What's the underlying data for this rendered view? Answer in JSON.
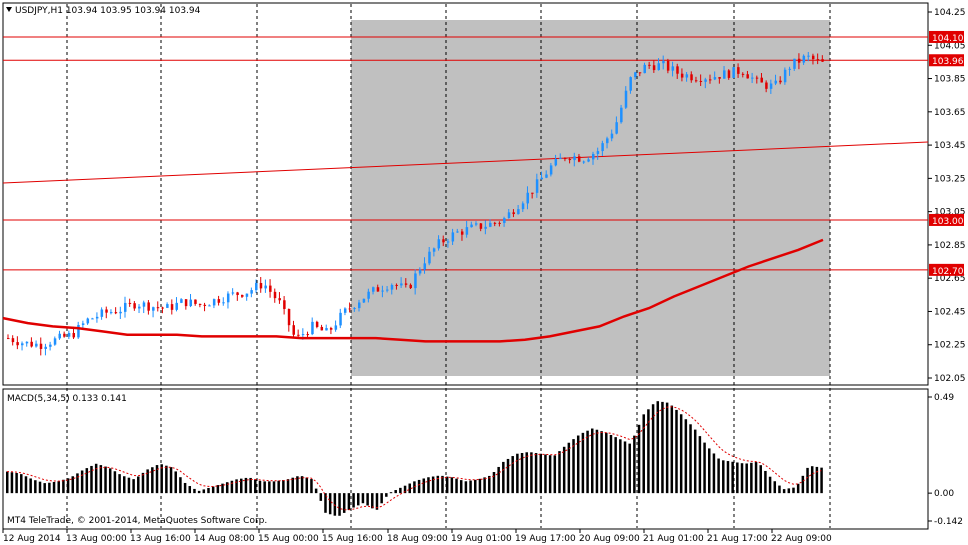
{
  "symbol_header": "USDJPY,H1  103.94 103.95 103.94 103.94",
  "macd_header": "MACD(5,34,5) 0.133 0.141",
  "copyright": "MT4 TeleTrade, © 2001-2014, MetaQuotes Software Corp.",
  "price_axis_labels": [
    "104.25",
    "104.05",
    "103.85",
    "103.65",
    "103.45",
    "103.25",
    "103.05",
    "102.85",
    "102.65",
    "102.45",
    "102.25",
    "102.05"
  ],
  "price_levels": [
    {
      "label": "104.10",
      "value": 104.1,
      "color": "#e00000"
    },
    {
      "label": "103.96",
      "value": 103.96,
      "color": "#e00000"
    },
    {
      "label": "103.00",
      "value": 103.0,
      "color": "#e00000"
    },
    {
      "label": "102.70",
      "value": 102.7,
      "color": "#e00000"
    }
  ],
  "macd_axis_labels": [
    "0.49",
    "0.00",
    "-0.142"
  ],
  "time_labels": [
    "12 Aug 2014",
    "13 Aug 00:00",
    "13 Aug 16:00",
    "14 Aug 08:00",
    "15 Aug 00:00",
    "15 Aug 16:00",
    "18 Aug 09:00",
    "19 Aug 01:00",
    "19 Aug 17:00",
    "20 Aug 09:00",
    "21 Aug 01:00",
    "21 Aug 17:00",
    "22 Aug 09:00"
  ],
  "colors": {
    "bull": "#1e90ff",
    "bear": "#e00000",
    "grid": "#000000",
    "shade": "#c0c0c0",
    "ma": "#e00000",
    "macd_bar": "#000000",
    "macd_signal": "#e00000"
  },
  "icons": {
    "header_marker": "triangle-down-icon"
  },
  "chart_data": {
    "type": "candlestick",
    "symbol": "USDJPY",
    "timeframe": "H1",
    "ylim": [
      102.05,
      104.25
    ],
    "x_ticks": [
      "12 Aug 2014",
      "13 Aug 00:00",
      "13 Aug 16:00",
      "14 Aug 08:00",
      "15 Aug 00:00",
      "15 Aug 16:00",
      "18 Aug 09:00",
      "19 Aug 01:00",
      "19 Aug 17:00",
      "20 Aug 09:00",
      "21 Aug 01:00",
      "21 Aug 17:00",
      "22 Aug 09:00"
    ],
    "highlight_range": {
      "from": "15 Aug 16:00",
      "to": "22 Aug 14:00"
    },
    "horizontal_levels": [
      104.1,
      103.96,
      103.0,
      102.7
    ],
    "trendline": {
      "start": 103.22,
      "end": 103.46
    },
    "close_path": [
      102.29,
      102.26,
      102.25,
      102.28,
      102.31,
      102.4,
      102.44,
      102.46,
      102.5,
      102.48,
      102.47,
      102.51,
      102.49,
      102.52,
      102.55,
      102.57,
      102.62,
      102.5,
      102.28,
      102.36,
      102.32,
      102.44,
      102.52,
      102.58,
      102.62,
      102.58,
      102.75,
      102.86,
      102.92,
      102.95,
      102.97,
      103.0,
      103.1,
      103.2,
      103.32,
      103.39,
      103.37,
      103.42,
      103.56,
      103.85,
      103.93,
      103.93,
      103.88,
      103.86,
      103.86,
      103.88,
      103.9,
      103.82,
      103.8,
      103.93,
      103.98,
      103.94
    ],
    "ma_path": [
      102.41,
      102.38,
      102.36,
      102.35,
      102.33,
      102.31,
      102.31,
      102.31,
      102.3,
      102.3,
      102.3,
      102.3,
      102.29,
      102.29,
      102.29,
      102.29,
      102.28,
      102.27,
      102.27,
      102.27,
      102.27,
      102.28,
      102.3,
      102.33,
      102.36,
      102.42,
      102.47,
      102.54,
      102.6,
      102.66,
      102.72,
      102.77,
      102.82,
      102.88
    ],
    "macd": {
      "ylim": [
        -0.142,
        0.49
      ],
      "bars": [
        0.11,
        0.1,
        0.07,
        0.05,
        0.06,
        0.08,
        0.12,
        0.15,
        0.13,
        0.09,
        0.07,
        0.12,
        0.15,
        0.13,
        0.05,
        0.01,
        0.03,
        0.05,
        0.07,
        0.08,
        0.06,
        0.06,
        0.07,
        0.09,
        0.07,
        -0.1,
        -0.12,
        -0.08,
        -0.05,
        -0.09,
        0.0,
        0.03,
        0.06,
        0.08,
        0.09,
        0.08,
        0.06,
        0.07,
        0.09,
        0.16,
        0.2,
        0.21,
        0.2,
        0.19,
        0.25,
        0.3,
        0.33,
        0.31,
        0.28,
        0.25,
        0.4,
        0.47,
        0.46,
        0.4,
        0.33,
        0.24,
        0.17,
        0.16,
        0.15,
        0.16,
        0.08,
        0.02,
        0.03,
        0.14,
        0.13
      ]
    }
  }
}
